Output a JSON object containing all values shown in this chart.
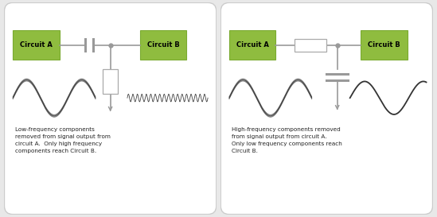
{
  "bg_color": "#e8e8e8",
  "panel_bg": "#ffffff",
  "green_box_color": "#8fbc3f",
  "green_box_edge": "#7aaa30",
  "circuit_label_color": "#000000",
  "wire_color": "#999999",
  "component_edge_color": "#aaaaaa",
  "arrow_color": "#999999",
  "signal_color": "#333333",
  "text_color": "#222222",
  "left_caption": "Low-frequency components\nremoved from signal output from\ncircuit A.  Only high frequency\ncomponents reach Circuit B.",
  "right_caption": "High-frequency components removed\nfrom signal output from circuit A.\nOnly low frequency components reach\nCircuit B.",
  "circuit_a_label": "Circuit A",
  "circuit_b_label": "Circuit B"
}
